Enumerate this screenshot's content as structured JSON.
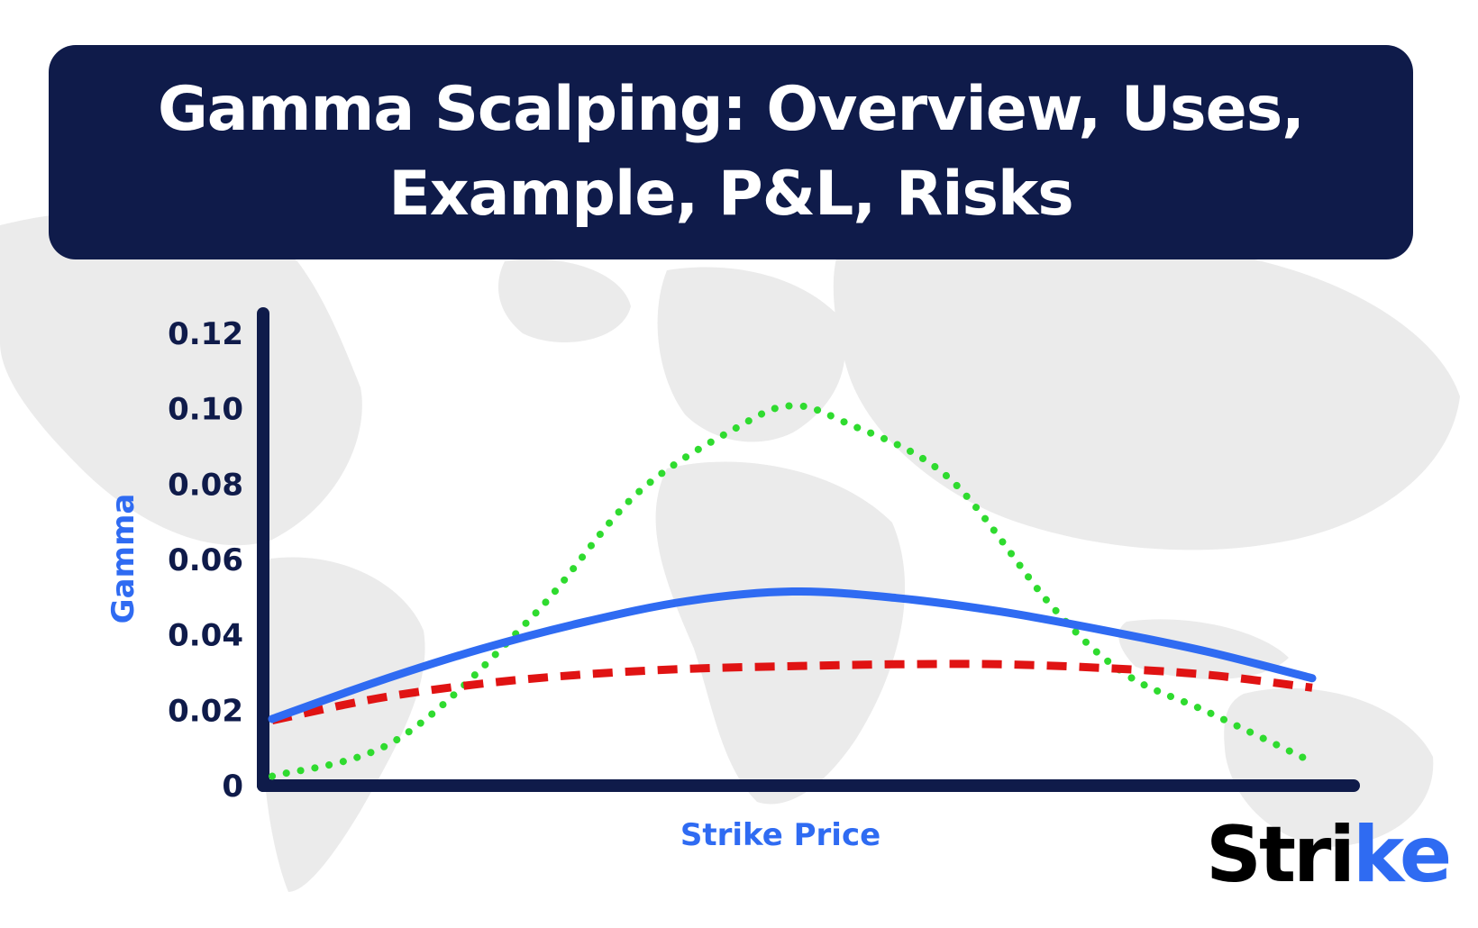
{
  "header": {
    "title": "Gamma Scalping: Overview, Uses, Example, P&L, Risks"
  },
  "brand": {
    "logo_main": "Stri",
    "logo_end": "ke",
    "logo_accent_color": "#2f6bf2"
  },
  "colors": {
    "banner": "#0f1b4a",
    "axis": "#0f1b4a",
    "map": "#ebebeb"
  },
  "chart_data": {
    "type": "line",
    "title": "",
    "xlabel": "Strike Price",
    "ylabel": "Gamma",
    "ylim": [
      0,
      0.12
    ],
    "yticks": [
      "0",
      "0.02",
      "0.04",
      "0.06",
      "0.08",
      "0.10",
      "0.12"
    ],
    "grid": false,
    "legend": "none",
    "series": [
      {
        "color": "#2f6bf2",
        "style": "solid",
        "points": [
          [
            0,
            0.0177
          ],
          [
            0.1,
            0.0275
          ],
          [
            0.2,
            0.0362
          ],
          [
            0.3,
            0.0434
          ],
          [
            0.4,
            0.049
          ],
          [
            0.5,
            0.0515
          ],
          [
            0.6,
            0.0498
          ],
          [
            0.7,
            0.0462
          ],
          [
            0.8,
            0.0412
          ],
          [
            0.9,
            0.0355
          ],
          [
            1.0,
            0.0285
          ]
        ]
      },
      {
        "color": "#e01313",
        "style": "dashed",
        "points": [
          [
            0,
            0.0173
          ],
          [
            0.1,
            0.0231
          ],
          [
            0.2,
            0.027
          ],
          [
            0.3,
            0.0295
          ],
          [
            0.4,
            0.031
          ],
          [
            0.5,
            0.0317
          ],
          [
            0.6,
            0.0322
          ],
          [
            0.7,
            0.0322
          ],
          [
            0.8,
            0.0312
          ],
          [
            0.9,
            0.0294
          ],
          [
            1.0,
            0.026
          ]
        ]
      },
      {
        "color": "#2fdb2f",
        "style": "dotted",
        "points": [
          [
            0,
            0.0025
          ],
          [
            0.12,
            0.0122
          ],
          [
            0.25,
            0.0448
          ],
          [
            0.35,
            0.0773
          ],
          [
            0.45,
            0.0955
          ],
          [
            0.5,
            0.1008
          ],
          [
            0.55,
            0.0965
          ],
          [
            0.65,
            0.0818
          ],
          [
            0.75,
            0.0475
          ],
          [
            0.82,
            0.0297
          ],
          [
            0.9,
            0.0195
          ],
          [
            1.0,
            0.0063
          ]
        ]
      }
    ]
  }
}
